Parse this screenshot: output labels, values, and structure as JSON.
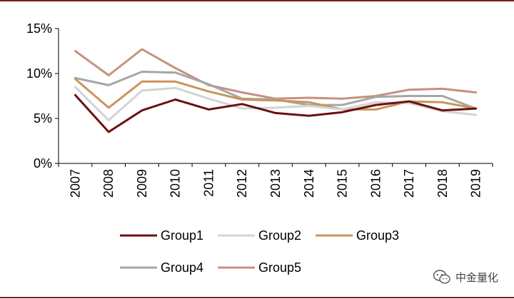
{
  "chart_data": {
    "type": "line",
    "title": "",
    "xlabel": "",
    "ylabel": "",
    "categories": [
      "2007",
      "2008",
      "2009",
      "2010",
      "2011",
      "2012",
      "2013",
      "2014",
      "2015",
      "2016",
      "2017",
      "2018",
      "2019"
    ],
    "ylim": [
      0,
      0.15
    ],
    "yticks": [
      0,
      0.05,
      0.1,
      0.15
    ],
    "ytick_labels": [
      "0%",
      "5%",
      "10%",
      "15%"
    ],
    "grid": false,
    "legend_position": "bottom",
    "series": [
      {
        "name": "Group1",
        "color": "#6b1010",
        "values": [
          0.076,
          0.035,
          0.059,
          0.071,
          0.06,
          0.066,
          0.056,
          0.053,
          0.057,
          0.065,
          0.069,
          0.059,
          0.061
        ]
      },
      {
        "name": "Group2",
        "color": "#d4d4d4",
        "values": [
          0.085,
          0.048,
          0.081,
          0.084,
          0.072,
          0.061,
          0.062,
          0.064,
          0.06,
          0.068,
          0.067,
          0.058,
          0.054
        ]
      },
      {
        "name": "Group3",
        "color": "#c8955a",
        "values": [
          0.094,
          0.062,
          0.091,
          0.091,
          0.08,
          0.071,
          0.07,
          0.068,
          0.06,
          0.06,
          0.069,
          0.068,
          0.061
        ]
      },
      {
        "name": "Group4",
        "color": "#a6a6a6",
        "values": [
          0.095,
          0.087,
          0.102,
          0.101,
          0.088,
          0.072,
          0.071,
          0.065,
          0.065,
          0.074,
          0.075,
          0.075,
          0.061
        ]
      },
      {
        "name": "Group5",
        "color": "#c6907e",
        "values": [
          0.125,
          0.098,
          0.127,
          0.106,
          0.087,
          0.079,
          0.072,
          0.073,
          0.072,
          0.075,
          0.082,
          0.083,
          0.079
        ]
      }
    ]
  },
  "watermark": {
    "icon": "wechat-icon",
    "text": "中金量化"
  },
  "frame": {
    "top_rule_color": "#7b1c1c",
    "bottom_rule_color": "#7b1c1c"
  }
}
